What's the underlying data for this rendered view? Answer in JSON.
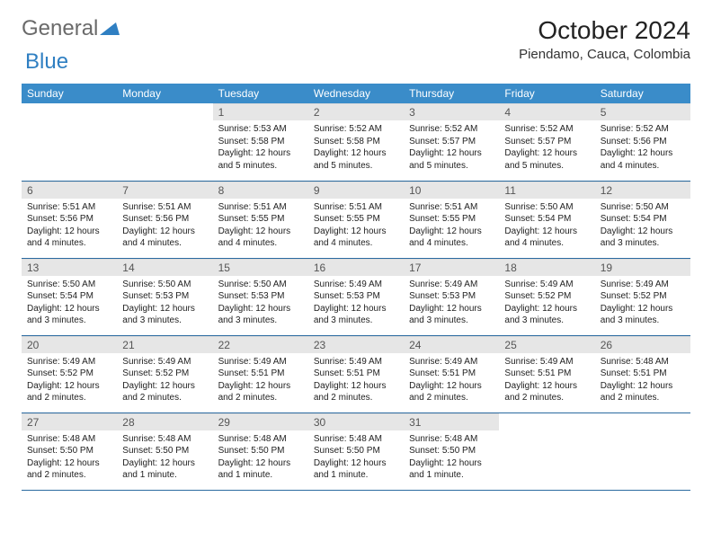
{
  "logo": {
    "general": "General",
    "blue": "Blue"
  },
  "title": "October 2024",
  "location": "Piendamo, Cauca, Colombia",
  "headers": [
    "Sunday",
    "Monday",
    "Tuesday",
    "Wednesday",
    "Thursday",
    "Friday",
    "Saturday"
  ],
  "colors": {
    "header_bg": "#3a8cc9",
    "header_text": "#ffffff",
    "daynum_bg": "#e6e6e6",
    "row_border": "#2a6aa0",
    "logo_blue": "#2f7fc2"
  },
  "weeks": [
    [
      null,
      null,
      {
        "n": "1",
        "sr": "5:53 AM",
        "ss": "5:58 PM",
        "dl": "12 hours and 5 minutes."
      },
      {
        "n": "2",
        "sr": "5:52 AM",
        "ss": "5:58 PM",
        "dl": "12 hours and 5 minutes."
      },
      {
        "n": "3",
        "sr": "5:52 AM",
        "ss": "5:57 PM",
        "dl": "12 hours and 5 minutes."
      },
      {
        "n": "4",
        "sr": "5:52 AM",
        "ss": "5:57 PM",
        "dl": "12 hours and 5 minutes."
      },
      {
        "n": "5",
        "sr": "5:52 AM",
        "ss": "5:56 PM",
        "dl": "12 hours and 4 minutes."
      }
    ],
    [
      {
        "n": "6",
        "sr": "5:51 AM",
        "ss": "5:56 PM",
        "dl": "12 hours and 4 minutes."
      },
      {
        "n": "7",
        "sr": "5:51 AM",
        "ss": "5:56 PM",
        "dl": "12 hours and 4 minutes."
      },
      {
        "n": "8",
        "sr": "5:51 AM",
        "ss": "5:55 PM",
        "dl": "12 hours and 4 minutes."
      },
      {
        "n": "9",
        "sr": "5:51 AM",
        "ss": "5:55 PM",
        "dl": "12 hours and 4 minutes."
      },
      {
        "n": "10",
        "sr": "5:51 AM",
        "ss": "5:55 PM",
        "dl": "12 hours and 4 minutes."
      },
      {
        "n": "11",
        "sr": "5:50 AM",
        "ss": "5:54 PM",
        "dl": "12 hours and 4 minutes."
      },
      {
        "n": "12",
        "sr": "5:50 AM",
        "ss": "5:54 PM",
        "dl": "12 hours and 3 minutes."
      }
    ],
    [
      {
        "n": "13",
        "sr": "5:50 AM",
        "ss": "5:54 PM",
        "dl": "12 hours and 3 minutes."
      },
      {
        "n": "14",
        "sr": "5:50 AM",
        "ss": "5:53 PM",
        "dl": "12 hours and 3 minutes."
      },
      {
        "n": "15",
        "sr": "5:50 AM",
        "ss": "5:53 PM",
        "dl": "12 hours and 3 minutes."
      },
      {
        "n": "16",
        "sr": "5:49 AM",
        "ss": "5:53 PM",
        "dl": "12 hours and 3 minutes."
      },
      {
        "n": "17",
        "sr": "5:49 AM",
        "ss": "5:53 PM",
        "dl": "12 hours and 3 minutes."
      },
      {
        "n": "18",
        "sr": "5:49 AM",
        "ss": "5:52 PM",
        "dl": "12 hours and 3 minutes."
      },
      {
        "n": "19",
        "sr": "5:49 AM",
        "ss": "5:52 PM",
        "dl": "12 hours and 3 minutes."
      }
    ],
    [
      {
        "n": "20",
        "sr": "5:49 AM",
        "ss": "5:52 PM",
        "dl": "12 hours and 2 minutes."
      },
      {
        "n": "21",
        "sr": "5:49 AM",
        "ss": "5:52 PM",
        "dl": "12 hours and 2 minutes."
      },
      {
        "n": "22",
        "sr": "5:49 AM",
        "ss": "5:51 PM",
        "dl": "12 hours and 2 minutes."
      },
      {
        "n": "23",
        "sr": "5:49 AM",
        "ss": "5:51 PM",
        "dl": "12 hours and 2 minutes."
      },
      {
        "n": "24",
        "sr": "5:49 AM",
        "ss": "5:51 PM",
        "dl": "12 hours and 2 minutes."
      },
      {
        "n": "25",
        "sr": "5:49 AM",
        "ss": "5:51 PM",
        "dl": "12 hours and 2 minutes."
      },
      {
        "n": "26",
        "sr": "5:48 AM",
        "ss": "5:51 PM",
        "dl": "12 hours and 2 minutes."
      }
    ],
    [
      {
        "n": "27",
        "sr": "5:48 AM",
        "ss": "5:50 PM",
        "dl": "12 hours and 2 minutes."
      },
      {
        "n": "28",
        "sr": "5:48 AM",
        "ss": "5:50 PM",
        "dl": "12 hours and 1 minute."
      },
      {
        "n": "29",
        "sr": "5:48 AM",
        "ss": "5:50 PM",
        "dl": "12 hours and 1 minute."
      },
      {
        "n": "30",
        "sr": "5:48 AM",
        "ss": "5:50 PM",
        "dl": "12 hours and 1 minute."
      },
      {
        "n": "31",
        "sr": "5:48 AM",
        "ss": "5:50 PM",
        "dl": "12 hours and 1 minute."
      },
      null,
      null
    ]
  ],
  "labels": {
    "sunrise": "Sunrise:",
    "sunset": "Sunset:",
    "daylight": "Daylight:"
  }
}
